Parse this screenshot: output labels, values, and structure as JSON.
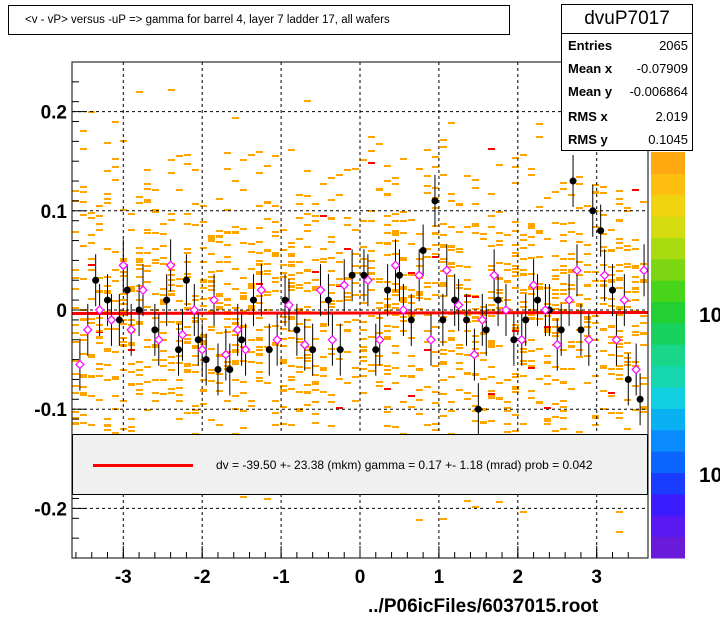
{
  "title": "<v - vP>       versus  -uP =>  gamma for barrel 4, layer 7 ladder 17, all wafers",
  "stats": {
    "name": "dvuP7017",
    "rows": [
      {
        "label": "Entries",
        "value": "2065"
      },
      {
        "label": "Mean x",
        "value": "-0.07909"
      },
      {
        "label": "Mean y",
        "value": "-0.006864"
      },
      {
        "label": "RMS x",
        "value": "2.019"
      },
      {
        "label": "RMS y",
        "value": "0.1045"
      }
    ]
  },
  "legend": {
    "text": "dv =  -39.50 +- 23.38 (mkm) gamma =    0.17 +-   1.18 (mrad) prob = 0.042",
    "line_color": "#ff0000"
  },
  "footer": "../P06icFiles/6037015.root",
  "colors": {
    "histogram": "#ffa500",
    "fit_line": "#ff0000",
    "profile_points": "#000000",
    "mirror_points": "#ff00ff",
    "grid": "#000000"
  },
  "chart_data": {
    "type": "scatter",
    "xlim": [
      -3.65,
      3.65
    ],
    "ylim": [
      -0.25,
      0.25
    ],
    "x_ticks": [
      -3,
      -2,
      -1,
      0,
      1,
      2,
      3
    ],
    "x_tick_labels": [
      "-3",
      "-2",
      "-1",
      "0",
      "1",
      "2",
      "3"
    ],
    "y_ticks": [
      -0.2,
      -0.1,
      0,
      0.1,
      0.2
    ],
    "y_tick_labels": [
      "-0.2",
      "-0.1",
      "0",
      "0.1",
      "0.2"
    ],
    "grid": true,
    "colorbar_labels": [
      "10",
      "10"
    ],
    "fit_line": {
      "y_at_xmin": -0.0035,
      "y_at_xmax": -0.0025
    },
    "series": [
      {
        "marker": "filled-circle",
        "x": [
          -3.35,
          -3.2,
          -3.05,
          -2.95,
          -2.8,
          -2.6,
          -2.45,
          -2.3,
          -2.2,
          -2.05,
          -1.95,
          -1.8,
          -1.65,
          -1.5,
          -1.35,
          -1.15,
          -0.95,
          -0.8,
          -0.6,
          -0.4,
          -0.25,
          -0.1,
          0.05,
          0.2,
          0.35,
          0.5,
          0.65,
          0.8,
          0.95,
          1.05,
          1.2,
          1.35,
          1.5,
          1.6,
          1.75,
          1.95,
          2.1,
          2.25,
          2.4,
          2.55,
          2.7,
          2.8,
          2.95,
          3.05,
          3.2,
          3.4,
          3.55
        ],
        "y": [
          0.03,
          0.01,
          -0.01,
          0.02,
          0.0,
          -0.02,
          0.01,
          -0.04,
          0.03,
          -0.03,
          -0.05,
          -0.06,
          -0.06,
          -0.03,
          0.01,
          -0.04,
          0.01,
          -0.02,
          -0.04,
          0.01,
          -0.04,
          0.035,
          0.035,
          -0.04,
          0.02,
          0.035,
          -0.01,
          0.06,
          0.11,
          -0.01,
          0.01,
          -0.01,
          -0.1,
          -0.02,
          0.01,
          -0.03,
          -0.01,
          0.01,
          0.0,
          -0.02,
          0.13,
          -0.02,
          0.1,
          0.08,
          0.02,
          -0.07,
          -0.09
        ]
      },
      {
        "marker": "open-diamond",
        "x": [
          -3.55,
          -3.45,
          -3.3,
          -3.15,
          -3.0,
          -2.9,
          -2.75,
          -2.55,
          -2.4,
          -2.25,
          -2.1,
          -2.0,
          -1.85,
          -1.7,
          -1.55,
          -1.45,
          -1.25,
          -1.05,
          -0.9,
          -0.7,
          -0.5,
          -0.35,
          -0.2,
          0.1,
          0.25,
          0.45,
          0.55,
          0.75,
          0.9,
          1.1,
          1.25,
          1.45,
          1.55,
          1.7,
          1.85,
          2.05,
          2.2,
          2.35,
          2.5,
          2.65,
          2.75,
          2.9,
          3.1,
          3.25,
          3.35,
          3.5,
          3.6
        ],
        "y": [
          -0.055,
          -0.02,
          0.0,
          -0.01,
          0.045,
          -0.02,
          0.02,
          -0.03,
          0.045,
          -0.025,
          0.0,
          -0.04,
          0.01,
          -0.045,
          -0.02,
          -0.04,
          0.02,
          -0.03,
          0.005,
          -0.035,
          0.02,
          -0.03,
          0.025,
          0.03,
          -0.03,
          0.045,
          0.0,
          0.035,
          -0.03,
          0.04,
          0.005,
          -0.045,
          -0.01,
          0.035,
          0.0,
          -0.03,
          0.025,
          0.0,
          -0.035,
          0.01,
          0.04,
          -0.03,
          0.035,
          -0.03,
          0.01,
          -0.06,
          0.04
        ]
      }
    ]
  }
}
